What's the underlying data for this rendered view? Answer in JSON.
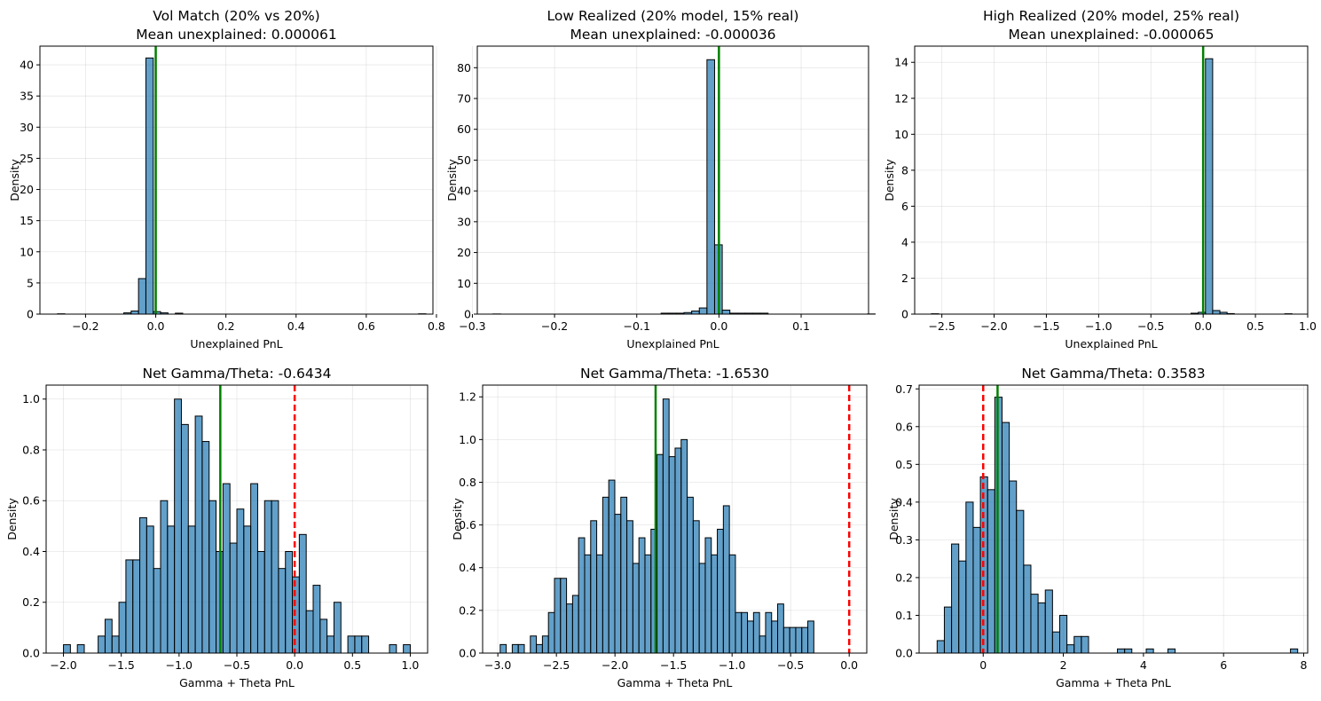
{
  "chart_data": [
    {
      "type": "bar",
      "title": "Vol Match (20% vs 20%)",
      "subtitle": "Mean unexplained: 0.000061",
      "xlabel": "Unexplained PnL",
      "ylabel": "Density",
      "xlim": [
        -0.33,
        0.79
      ],
      "ylim": [
        0,
        43
      ],
      "xticks": [
        -0.2,
        0.0,
        0.2,
        0.4,
        0.6,
        0.8
      ],
      "xtick_labels": [
        "−0.2",
        "0.0",
        "0.2",
        "0.4",
        "0.6",
        "0.8"
      ],
      "yticks": [
        0,
        5,
        10,
        15,
        20,
        25,
        30,
        35,
        40
      ],
      "ytick_labels": [
        "0",
        "5",
        "10",
        "15",
        "20",
        "25",
        "30",
        "35",
        "40"
      ],
      "bins": {
        "start": -0.28,
        "width": 0.021
      },
      "values": [
        0.05,
        0,
        0,
        0,
        0,
        0,
        0,
        0,
        0,
        0.2,
        0.5,
        5.7,
        41.1,
        0.4,
        0.2,
        0,
        0.15,
        0,
        0,
        0,
        0,
        0,
        0,
        0,
        0,
        0,
        0,
        0,
        0,
        0,
        0,
        0,
        0,
        0,
        0,
        0,
        0,
        0,
        0,
        0,
        0,
        0,
        0,
        0,
        0,
        0,
        0,
        0,
        0,
        0.05
      ],
      "mean_line": {
        "value": 6.1e-05,
        "color": "#008000"
      },
      "zero_line": null,
      "grid": true
    },
    {
      "type": "bar",
      "title": "Low Realized (20% model, 15% real)",
      "subtitle": "Mean unexplained: -0.000036",
      "xlabel": "Unexplained PnL",
      "ylabel": "Density",
      "xlim": [
        -0.294,
        0.182
      ],
      "ylim": [
        0,
        87
      ],
      "xticks": [
        -0.3,
        -0.2,
        -0.1,
        0.0,
        0.1
      ],
      "xtick_labels": [
        "−0.3",
        "−0.2",
        "−0.1",
        "0.0",
        "0.1"
      ],
      "yticks": [
        0,
        10,
        20,
        30,
        40,
        50,
        60,
        70,
        80
      ],
      "ytick_labels": [
        "0",
        "10",
        "20",
        "30",
        "40",
        "50",
        "60",
        "70",
        "80"
      ],
      "bins": {
        "start": -0.275,
        "width": 0.0093
      },
      "values": [
        0.05,
        0,
        0,
        0,
        0,
        0,
        0,
        0,
        0,
        0,
        0,
        0,
        0,
        0,
        0,
        0,
        0,
        0,
        0,
        0,
        0,
        0,
        0.3,
        0.3,
        0.3,
        0.5,
        1.0,
        2.0,
        82.6,
        22.5,
        1.3,
        0.3,
        0.3,
        0.3,
        0.3,
        0.3,
        0,
        0,
        0,
        0,
        0,
        0,
        0,
        0,
        0,
        0,
        0,
        0,
        0,
        0.05
      ],
      "mean_line": {
        "value": -3.6e-05,
        "color": "#008000"
      },
      "zero_line": null,
      "grid": true
    },
    {
      "type": "bar",
      "title": "High Realized (20% model, 25% real)",
      "subtitle": "Mean unexplained: -0.000065",
      "xlabel": "Unexplained PnL",
      "ylabel": "Density",
      "xlim": [
        -2.76,
        1.0
      ],
      "ylim": [
        0,
        14.9
      ],
      "xticks": [
        -2.5,
        -2.0,
        -1.5,
        -1.0,
        -0.5,
        0.0,
        0.5,
        1.0
      ],
      "xtick_labels": [
        "−2.5",
        "−2.0",
        "−1.5",
        "−1.0",
        "−0.5",
        "0.0",
        "0.5",
        "1.0"
      ],
      "yticks": [
        0,
        2,
        4,
        6,
        8,
        10,
        12,
        14
      ],
      "ytick_labels": [
        "0",
        "2",
        "4",
        "6",
        "8",
        "10",
        "12",
        "14"
      ],
      "bins": {
        "start": -2.6,
        "width": 0.069
      },
      "values": [
        0.02,
        0,
        0,
        0,
        0,
        0,
        0,
        0,
        0,
        0,
        0,
        0,
        0,
        0,
        0,
        0,
        0,
        0,
        0,
        0,
        0,
        0,
        0,
        0,
        0,
        0,
        0,
        0,
        0,
        0,
        0,
        0,
        0,
        0,
        0,
        0,
        0.05,
        0.1,
        14.2,
        0.2,
        0.1,
        0.03,
        0,
        0,
        0,
        0,
        0,
        0,
        0,
        0.02
      ],
      "mean_line": {
        "value": -6.5e-05,
        "color": "#008000"
      },
      "zero_line": null,
      "grid": true
    },
    {
      "type": "bar",
      "title": "Net Gamma/Theta: -0.6434",
      "subtitle": "",
      "xlabel": "Gamma + Theta PnL",
      "ylabel": "Density",
      "xlim": [
        -2.15,
        1.15
      ],
      "ylim": [
        0,
        1.055
      ],
      "xticks": [
        -2.0,
        -1.5,
        -1.0,
        -0.5,
        0.0,
        0.5,
        1.0
      ],
      "xtick_labels": [
        "−2.0",
        "−1.5",
        "−1.0",
        "−0.5",
        "0.0",
        "0.5",
        "1.0"
      ],
      "yticks": [
        0,
        0.2,
        0.4,
        0.6,
        0.8,
        1.0
      ],
      "ytick_labels": [
        "0.0",
        "0.2",
        "0.4",
        "0.6",
        "0.8",
        "1.0"
      ],
      "bins": {
        "start": -2.0,
        "width": 0.06
      },
      "values": [
        0.033,
        0,
        0.033,
        0,
        0,
        0.067,
        0.133,
        0.067,
        0.2,
        0.367,
        0.367,
        0.533,
        0.5,
        0.333,
        0.6,
        0.5,
        1.0,
        0.9,
        0.5,
        0.933,
        0.833,
        0.6,
        0.4,
        0.667,
        0.433,
        0.567,
        0.5,
        0.667,
        0.4,
        0.6,
        0.6,
        0.333,
        0.4,
        0.3,
        0.467,
        0.167,
        0.267,
        0.133,
        0.067,
        0.2,
        0,
        0.067,
        0.067,
        0.067,
        0,
        0,
        0,
        0.033,
        0,
        0.033
      ],
      "mean_line": {
        "value": -0.6434,
        "color": "#008000"
      },
      "zero_line": {
        "value": 0,
        "color": "#ff0000",
        "style": "dashed"
      },
      "grid": true
    },
    {
      "type": "bar",
      "title": "Net Gamma/Theta: -1.6530",
      "subtitle": "",
      "xlabel": "Gamma + Theta PnL",
      "ylabel": "Density",
      "xlim": [
        -3.13,
        0.15
      ],
      "ylim": [
        0,
        1.255
      ],
      "xticks": [
        -3.0,
        -2.5,
        -2.0,
        -1.5,
        -1.0,
        -0.5,
        0.0
      ],
      "xtick_labels": [
        "−3.0",
        "−2.5",
        "−2.0",
        "−1.5",
        "−1.0",
        "−0.5",
        "0.0"
      ],
      "yticks": [
        0,
        0.2,
        0.4,
        0.6,
        0.8,
        1.0,
        1.2
      ],
      "ytick_labels": [
        "0.0",
        "0.2",
        "0.4",
        "0.6",
        "0.8",
        "1.0",
        "1.2"
      ],
      "bins": {
        "start": -2.98,
        "width": 0.0515
      },
      "values": [
        0.04,
        0,
        0.04,
        0.04,
        0,
        0.08,
        0.04,
        0.08,
        0.19,
        0.35,
        0.35,
        0.23,
        0.27,
        0.54,
        0.46,
        0.62,
        0.46,
        0.73,
        0.81,
        0.65,
        0.73,
        0.62,
        0.42,
        0.54,
        0.46,
        0.58,
        0.93,
        1.19,
        0.92,
        0.96,
        1.0,
        0.73,
        0.62,
        0.42,
        0.54,
        0.46,
        0.58,
        0.69,
        0.46,
        0.19,
        0.19,
        0.15,
        0.19,
        0.08,
        0.19,
        0.15,
        0.23,
        0.12,
        0.12,
        0.12,
        0.12,
        0.15
      ],
      "mean_line": {
        "value": -1.653,
        "color": "#008000"
      },
      "zero_line": {
        "value": 0,
        "color": "#ff0000",
        "style": "dashed"
      },
      "grid": true
    },
    {
      "type": "bar",
      "title": "Net Gamma/Theta: 0.3583",
      "subtitle": "",
      "xlabel": "Gamma + Theta PnL",
      "ylabel": "Density",
      "xlim": [
        -1.6,
        8.1
      ],
      "ylim": [
        0,
        0.71
      ],
      "xticks": [
        0,
        2,
        4,
        6,
        8
      ],
      "xtick_labels": [
        "0",
        "2",
        "4",
        "6",
        "8"
      ],
      "yticks": [
        0,
        0.1,
        0.2,
        0.3,
        0.4,
        0.5,
        0.6,
        0.7
      ],
      "ytick_labels": [
        "0.0",
        "0.1",
        "0.2",
        "0.3",
        "0.4",
        "0.5",
        "0.6",
        "0.7"
      ],
      "bins": {
        "start": -1.15,
        "width": 0.18
      },
      "values": [
        0.033,
        0.122,
        0.289,
        0.244,
        0.4,
        0.333,
        0.467,
        0.433,
        0.678,
        0.611,
        0.456,
        0.378,
        0.233,
        0.156,
        0.133,
        0.167,
        0.056,
        0.1,
        0.022,
        0.044,
        0.044,
        0,
        0,
        0,
        0,
        0.011,
        0.011,
        0,
        0,
        0.011,
        0,
        0,
        0.011,
        0,
        0,
        0,
        0,
        0,
        0,
        0,
        0,
        0,
        0,
        0,
        0,
        0,
        0,
        0,
        0,
        0.011
      ],
      "mean_line": {
        "value": 0.3583,
        "color": "#008000"
      },
      "zero_line": {
        "value": 0,
        "color": "#ff0000",
        "style": "dashed"
      },
      "grid": true
    }
  ]
}
